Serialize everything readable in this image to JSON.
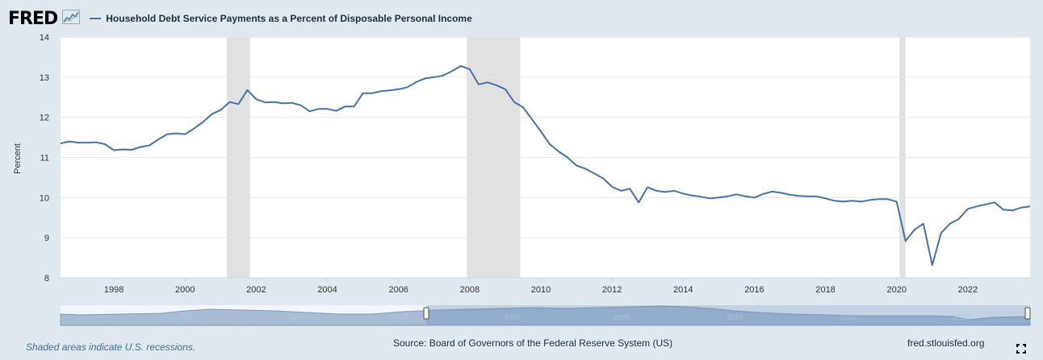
{
  "brand": {
    "logo_text": "FRED",
    "logo_icon": "fred-chart-icon"
  },
  "legend": {
    "series_name": "Household Debt Service Payments as a Percent of Disposable Personal Income",
    "color": "#4572a7"
  },
  "footer": {
    "recession_note": "Shaded areas indicate U.S. recessions.",
    "source": "Source: Board of Governors of the Federal Reserve System (US)",
    "site": "fred.stlouisfed.org"
  },
  "chart_data": {
    "type": "line",
    "title": "",
    "xlabel": "",
    "ylabel": "Percent",
    "ylim": [
      8,
      14
    ],
    "xlim": [
      1996.5,
      2023.75
    ],
    "yticks": [
      8,
      9,
      10,
      11,
      12,
      13,
      14
    ],
    "xticks": [
      1998,
      2000,
      2002,
      2004,
      2006,
      2008,
      2010,
      2012,
      2014,
      2016,
      2018,
      2020,
      2022
    ],
    "grid": true,
    "legend_position": "top-left",
    "recessions": [
      [
        2001.17,
        2001.83
      ],
      [
        2007.92,
        2009.42
      ],
      [
        2020.08,
        2020.25
      ]
    ],
    "series": [
      {
        "name": "Household Debt Service Payments as a Percent of Disposable Personal Income",
        "color": "#4572a7",
        "x": [
          1996.5,
          1996.75,
          1997.0,
          1997.25,
          1997.5,
          1997.75,
          1998.0,
          1998.25,
          1998.5,
          1998.75,
          1999.0,
          1999.25,
          1999.5,
          1999.75,
          2000.0,
          2000.25,
          2000.5,
          2000.75,
          2001.0,
          2001.25,
          2001.5,
          2001.75,
          2002.0,
          2002.25,
          2002.5,
          2002.75,
          2003.0,
          2003.25,
          2003.5,
          2003.75,
          2004.0,
          2004.25,
          2004.5,
          2004.75,
          2005.0,
          2005.25,
          2005.5,
          2005.75,
          2006.0,
          2006.25,
          2006.5,
          2006.75,
          2007.0,
          2007.25,
          2007.5,
          2007.75,
          2008.0,
          2008.25,
          2008.5,
          2008.75,
          2009.0,
          2009.25,
          2009.5,
          2009.75,
          2010.0,
          2010.25,
          2010.5,
          2010.75,
          2011.0,
          2011.25,
          2011.5,
          2011.75,
          2012.0,
          2012.25,
          2012.5,
          2012.75,
          2013.0,
          2013.25,
          2013.5,
          2013.75,
          2014.0,
          2014.25,
          2014.5,
          2014.75,
          2015.0,
          2015.25,
          2015.5,
          2015.75,
          2016.0,
          2016.25,
          2016.5,
          2016.75,
          2017.0,
          2017.25,
          2017.5,
          2017.75,
          2018.0,
          2018.25,
          2018.5,
          2018.75,
          2019.0,
          2019.25,
          2019.5,
          2019.75,
          2020.0,
          2020.25,
          2020.5,
          2020.75,
          2021.0,
          2021.25,
          2021.5,
          2021.75,
          2022.0,
          2022.25,
          2022.5,
          2022.75,
          2023.0,
          2023.25,
          2023.5,
          2023.75
        ],
        "values": [
          11.35,
          11.4,
          11.37,
          11.37,
          11.38,
          11.33,
          11.18,
          11.2,
          11.19,
          11.26,
          11.3,
          11.45,
          11.58,
          11.6,
          11.58,
          11.72,
          11.88,
          12.08,
          12.18,
          12.38,
          12.33,
          12.68,
          12.45,
          12.37,
          12.38,
          12.35,
          12.36,
          12.3,
          12.15,
          12.21,
          12.21,
          12.16,
          12.27,
          12.27,
          12.6,
          12.6,
          12.65,
          12.67,
          12.7,
          12.75,
          12.88,
          12.97,
          13.0,
          13.04,
          13.15,
          13.28,
          13.2,
          12.82,
          12.87,
          12.8,
          12.7,
          12.38,
          12.25,
          11.95,
          11.65,
          11.33,
          11.15,
          11.0,
          10.8,
          10.72,
          10.6,
          10.48,
          10.27,
          10.17,
          10.22,
          9.88,
          10.26,
          10.17,
          10.14,
          10.17,
          10.1,
          10.05,
          10.02,
          9.98,
          10.0,
          10.03,
          10.08,
          10.03,
          10.0,
          10.09,
          10.15,
          10.12,
          10.07,
          10.04,
          10.03,
          10.03,
          9.98,
          9.92,
          9.9,
          9.92,
          9.9,
          9.94,
          9.96,
          9.96,
          9.9,
          8.92,
          9.2,
          9.35,
          8.32,
          9.12,
          9.35,
          9.47,
          9.72,
          9.78,
          9.83,
          9.88,
          9.7,
          9.68,
          9.75,
          9.78
        ]
      }
    ]
  }
}
